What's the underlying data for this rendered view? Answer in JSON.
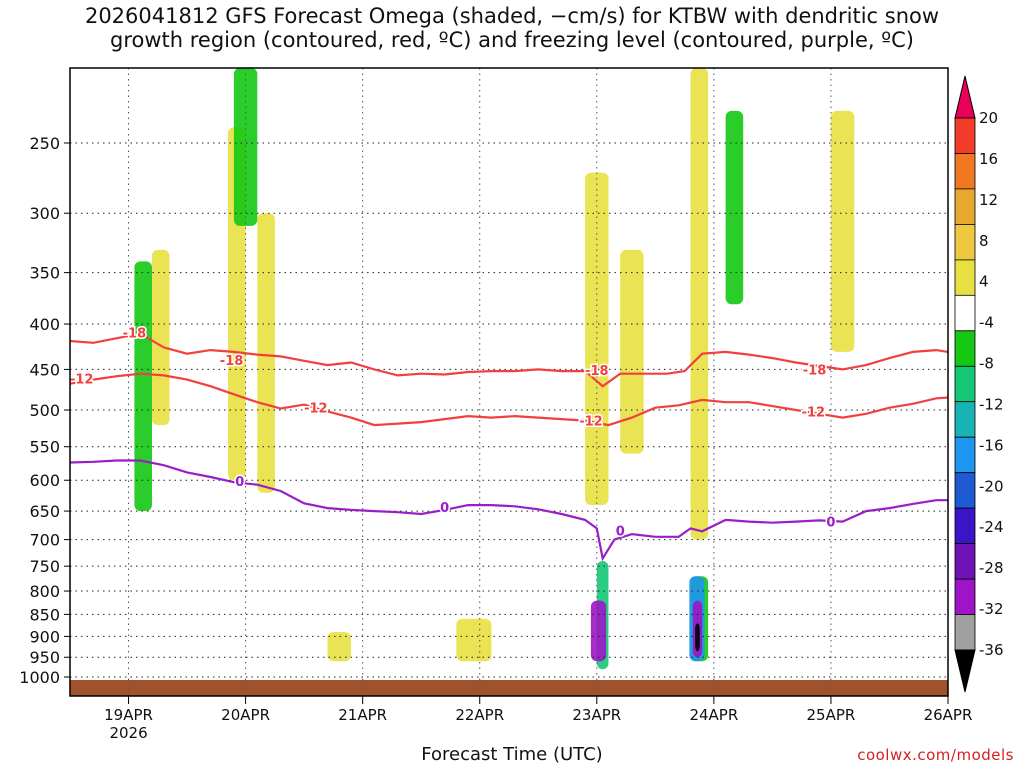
{
  "title_line1": "2026041812 GFS Forecast Omega (shaded, −cm/s) for KTBW with dendritic snow",
  "title_line2": "growth region (contoured, red, ºC) and freezing level (contoured, purple, ºC)",
  "xlabel": "Forecast Time (UTC)",
  "watermark": "coolwx.com/models",
  "chart_data": {
    "type": "heatmap",
    "title": "2026041812 GFS Forecast Omega (shaded, −cm/s) for KTBW with dendritic snow growth region (contoured, red, ºC) and freezing level (contoured, purple, ºC)",
    "xlabel": "Forecast Time (UTC)",
    "ylabel": "Pressure (hPa)",
    "x_range": [
      -0.5,
      7.0
    ],
    "y_range_hpa": [
      1025,
      200
    ],
    "y_ticks": [
      250,
      300,
      350,
      400,
      450,
      500,
      550,
      600,
      650,
      700,
      750,
      800,
      850,
      900,
      950,
      1000
    ],
    "x_ticks": [
      {
        "x": 0,
        "label": "19APR",
        "sub": "2026"
      },
      {
        "x": 1,
        "label": "20APR",
        "sub": ""
      },
      {
        "x": 2,
        "label": "21APR",
        "sub": ""
      },
      {
        "x": 3,
        "label": "22APR",
        "sub": ""
      },
      {
        "x": 4,
        "label": "23APR",
        "sub": ""
      },
      {
        "x": 5,
        "label": "24APR",
        "sub": ""
      },
      {
        "x": 6,
        "label": "25APR",
        "sub": ""
      },
      {
        "x": 7,
        "label": "26APR",
        "sub": ""
      }
    ],
    "colorbar": {
      "ticks": [
        "20",
        "16",
        "12",
        "8",
        "4",
        "-4",
        "-8",
        "-12",
        "-16",
        "-20",
        "-24",
        "-28",
        "-32",
        "-36"
      ],
      "colors": [
        "#e8005a",
        "#f03c28",
        "#f07820",
        "#e8a830",
        "#f0c840",
        "#e8e040",
        "#ffffff",
        "#14c814",
        "#14c878",
        "#18b4b4",
        "#1e96f0",
        "#1e5ad2",
        "#3c14c8",
        "#6e14b4",
        "#a014c8",
        "#a0a0a0",
        "#000000"
      ]
    },
    "contours": [
      {
        "name": "-18C",
        "label": "-18",
        "color": "#f04040",
        "points": [
          [
            -0.5,
            418
          ],
          [
            -0.3,
            420
          ],
          [
            -0.1,
            415
          ],
          [
            0.1,
            410
          ],
          [
            0.3,
            425
          ],
          [
            0.5,
            432
          ],
          [
            0.7,
            428
          ],
          [
            0.9,
            430
          ],
          [
            1.1,
            433
          ],
          [
            1.3,
            435
          ],
          [
            1.5,
            440
          ],
          [
            1.7,
            445
          ],
          [
            1.9,
            442
          ],
          [
            2.1,
            450
          ],
          [
            2.3,
            457
          ],
          [
            2.5,
            455
          ],
          [
            2.7,
            456
          ],
          [
            2.9,
            453
          ],
          [
            3.1,
            452
          ],
          [
            3.3,
            452
          ],
          [
            3.5,
            450
          ],
          [
            3.7,
            452
          ],
          [
            3.9,
            452
          ],
          [
            4.05,
            470
          ],
          [
            4.2,
            455
          ],
          [
            4.4,
            455
          ],
          [
            4.6,
            455
          ],
          [
            4.75,
            452
          ],
          [
            4.9,
            432
          ],
          [
            5.1,
            430
          ],
          [
            5.3,
            433
          ],
          [
            5.5,
            437
          ],
          [
            5.7,
            442
          ],
          [
            5.9,
            446
          ],
          [
            6.1,
            450
          ],
          [
            6.3,
            445
          ],
          [
            6.5,
            437
          ],
          [
            6.7,
            430
          ],
          [
            6.9,
            428
          ],
          [
            7.0,
            430
          ]
        ],
        "labels": [
          [
            0.05,
            410
          ],
          [
            0.88,
            440
          ],
          [
            4.0,
            452
          ],
          [
            5.86,
            451
          ]
        ]
      },
      {
        "name": "-12C",
        "label": "-12",
        "color": "#f04040",
        "points": [
          [
            -0.5,
            467
          ],
          [
            -0.3,
            462
          ],
          [
            -0.1,
            458
          ],
          [
            0.1,
            455
          ],
          [
            0.3,
            457
          ],
          [
            0.5,
            462
          ],
          [
            0.7,
            470
          ],
          [
            0.9,
            480
          ],
          [
            1.1,
            490
          ],
          [
            1.3,
            498
          ],
          [
            1.5,
            493
          ],
          [
            1.7,
            502
          ],
          [
            1.9,
            510
          ],
          [
            2.1,
            520
          ],
          [
            2.3,
            518
          ],
          [
            2.5,
            516
          ],
          [
            2.7,
            512
          ],
          [
            2.9,
            508
          ],
          [
            3.1,
            510
          ],
          [
            3.3,
            508
          ],
          [
            3.5,
            510
          ],
          [
            3.7,
            512
          ],
          [
            3.9,
            514
          ],
          [
            4.1,
            520
          ],
          [
            4.3,
            510
          ],
          [
            4.5,
            497
          ],
          [
            4.7,
            494
          ],
          [
            4.9,
            487
          ],
          [
            5.1,
            490
          ],
          [
            5.3,
            490
          ],
          [
            5.5,
            495
          ],
          [
            5.7,
            500
          ],
          [
            5.9,
            505
          ],
          [
            6.1,
            510
          ],
          [
            6.3,
            505
          ],
          [
            6.5,
            497
          ],
          [
            6.7,
            492
          ],
          [
            6.9,
            485
          ],
          [
            7.0,
            484
          ]
        ],
        "labels": [
          [
            -0.4,
            462
          ],
          [
            1.6,
            498
          ],
          [
            3.95,
            515
          ],
          [
            5.85,
            503
          ]
        ]
      },
      {
        "name": "0C",
        "label": "0",
        "color": "#9a1ec8",
        "points": [
          [
            -0.5,
            573
          ],
          [
            -0.3,
            572
          ],
          [
            -0.1,
            570
          ],
          [
            0.1,
            570
          ],
          [
            0.3,
            577
          ],
          [
            0.5,
            588
          ],
          [
            0.7,
            595
          ],
          [
            0.9,
            603
          ],
          [
            1.1,
            607
          ],
          [
            1.3,
            617
          ],
          [
            1.5,
            637
          ],
          [
            1.7,
            645
          ],
          [
            1.9,
            648
          ],
          [
            2.1,
            650
          ],
          [
            2.3,
            652
          ],
          [
            2.5,
            655
          ],
          [
            2.7,
            648
          ],
          [
            2.9,
            640
          ],
          [
            3.1,
            640
          ],
          [
            3.3,
            642
          ],
          [
            3.5,
            647
          ],
          [
            3.7,
            655
          ],
          [
            3.9,
            665
          ],
          [
            4.0,
            680
          ],
          [
            4.05,
            735
          ],
          [
            4.15,
            700
          ],
          [
            4.3,
            690
          ],
          [
            4.5,
            695
          ],
          [
            4.7,
            695
          ],
          [
            4.8,
            680
          ],
          [
            4.9,
            685
          ],
          [
            5.1,
            665
          ],
          [
            5.3,
            668
          ],
          [
            5.5,
            670
          ],
          [
            5.7,
            668
          ],
          [
            5.9,
            666
          ],
          [
            6.1,
            668
          ],
          [
            6.3,
            650
          ],
          [
            6.5,
            645
          ],
          [
            6.7,
            638
          ],
          [
            6.9,
            632
          ],
          [
            7.0,
            632
          ]
        ],
        "labels": [
          [
            0.95,
            603
          ],
          [
            2.7,
            645
          ],
          [
            4.2,
            685
          ],
          [
            6.0,
            670
          ]
        ]
      }
    ],
    "shaded_regions": [
      {
        "value": "4 to 8",
        "x": [
          0.85,
          1.0
        ],
        "p": [
          240,
          600
        ]
      },
      {
        "value": "4 to 8",
        "x": [
          1.1,
          1.25
        ],
        "p": [
          300,
          620
        ]
      },
      {
        "value": "4 to 8",
        "x": [
          0.2,
          0.35
        ],
        "p": [
          330,
          520
        ]
      },
      {
        "value": "4 to 8",
        "x": [
          3.9,
          4.1
        ],
        "p": [
          270,
          640
        ]
      },
      {
        "value": "4 to 8",
        "x": [
          4.2,
          4.4
        ],
        "p": [
          330,
          560
        ]
      },
      {
        "value": "4 to 8",
        "x": [
          4.8,
          4.95
        ],
        "p": [
          180,
          700
        ]
      },
      {
        "value": "4 to 8",
        "x": [
          6.0,
          6.2
        ],
        "p": [
          230,
          430
        ]
      },
      {
        "value": "4 to 8",
        "x": [
          2.8,
          3.1
        ],
        "p": [
          860,
          960
        ]
      },
      {
        "value": "4 to 8",
        "x": [
          1.7,
          1.9
        ],
        "p": [
          890,
          960
        ]
      },
      {
        "value": "-4 to -8",
        "x": [
          0.05,
          0.2
        ],
        "p": [
          340,
          650
        ]
      },
      {
        "value": "-4 to -8",
        "x": [
          0.9,
          1.1
        ],
        "p": [
          200,
          310
        ]
      },
      {
        "value": "-4 to -8",
        "x": [
          5.1,
          5.25
        ],
        "p": [
          230,
          380
        ]
      },
      {
        "value": "-4 to -8",
        "x": [
          4.8,
          4.95
        ],
        "p": [
          770,
          960
        ]
      },
      {
        "value": "-8 to -12",
        "x": [
          4.0,
          4.1
        ],
        "p": [
          740,
          980
        ]
      },
      {
        "value": "-16 to -20",
        "x": [
          4.79,
          4.92
        ],
        "p": [
          770,
          960
        ]
      },
      {
        "value": "-28 to -32",
        "x": [
          3.95,
          4.08
        ],
        "p": [
          820,
          960
        ]
      },
      {
        "value": "-28 to -32",
        "x": [
          4.82,
          4.9
        ],
        "p": [
          820,
          950
        ]
      },
      {
        "value": "< -36",
        "x": [
          4.84,
          4.88
        ],
        "p": [
          870,
          935
        ]
      }
    ]
  }
}
